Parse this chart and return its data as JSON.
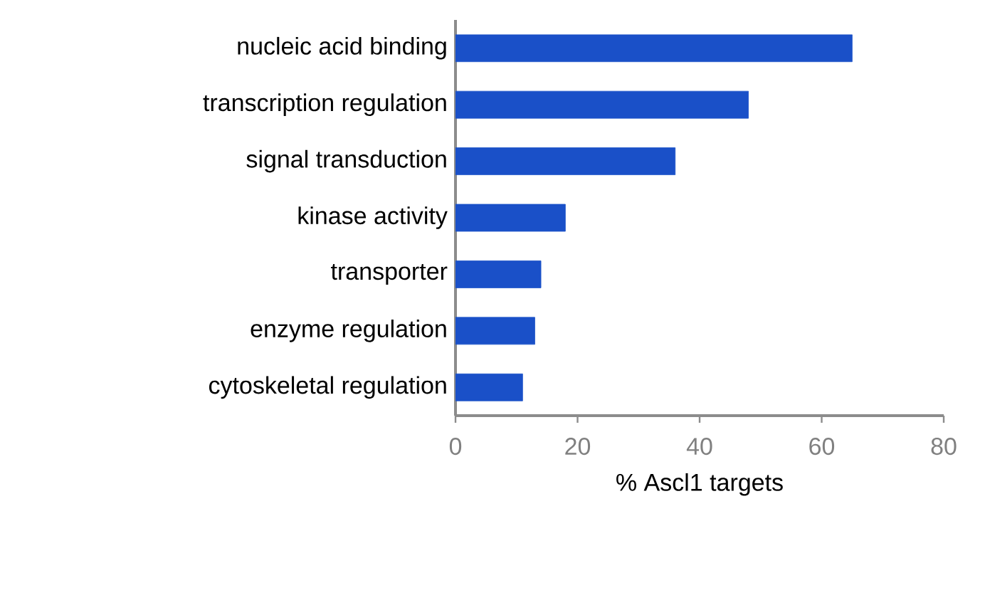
{
  "chart_data": {
    "type": "bar",
    "orientation": "horizontal",
    "categories": [
      "nucleic acid binding",
      "transcription regulation",
      "signal transduction",
      "kinase activity",
      "transporter",
      "enzyme regulation",
      "cytoskeletal regulation"
    ],
    "values": [
      65,
      48,
      36,
      18,
      14,
      13,
      11
    ],
    "color": "#1a50c8",
    "xlabel": "% Ascl1 targets",
    "xlim": [
      0,
      80
    ],
    "xticks": [
      0,
      20,
      40,
      60,
      80
    ],
    "grid": false
  }
}
